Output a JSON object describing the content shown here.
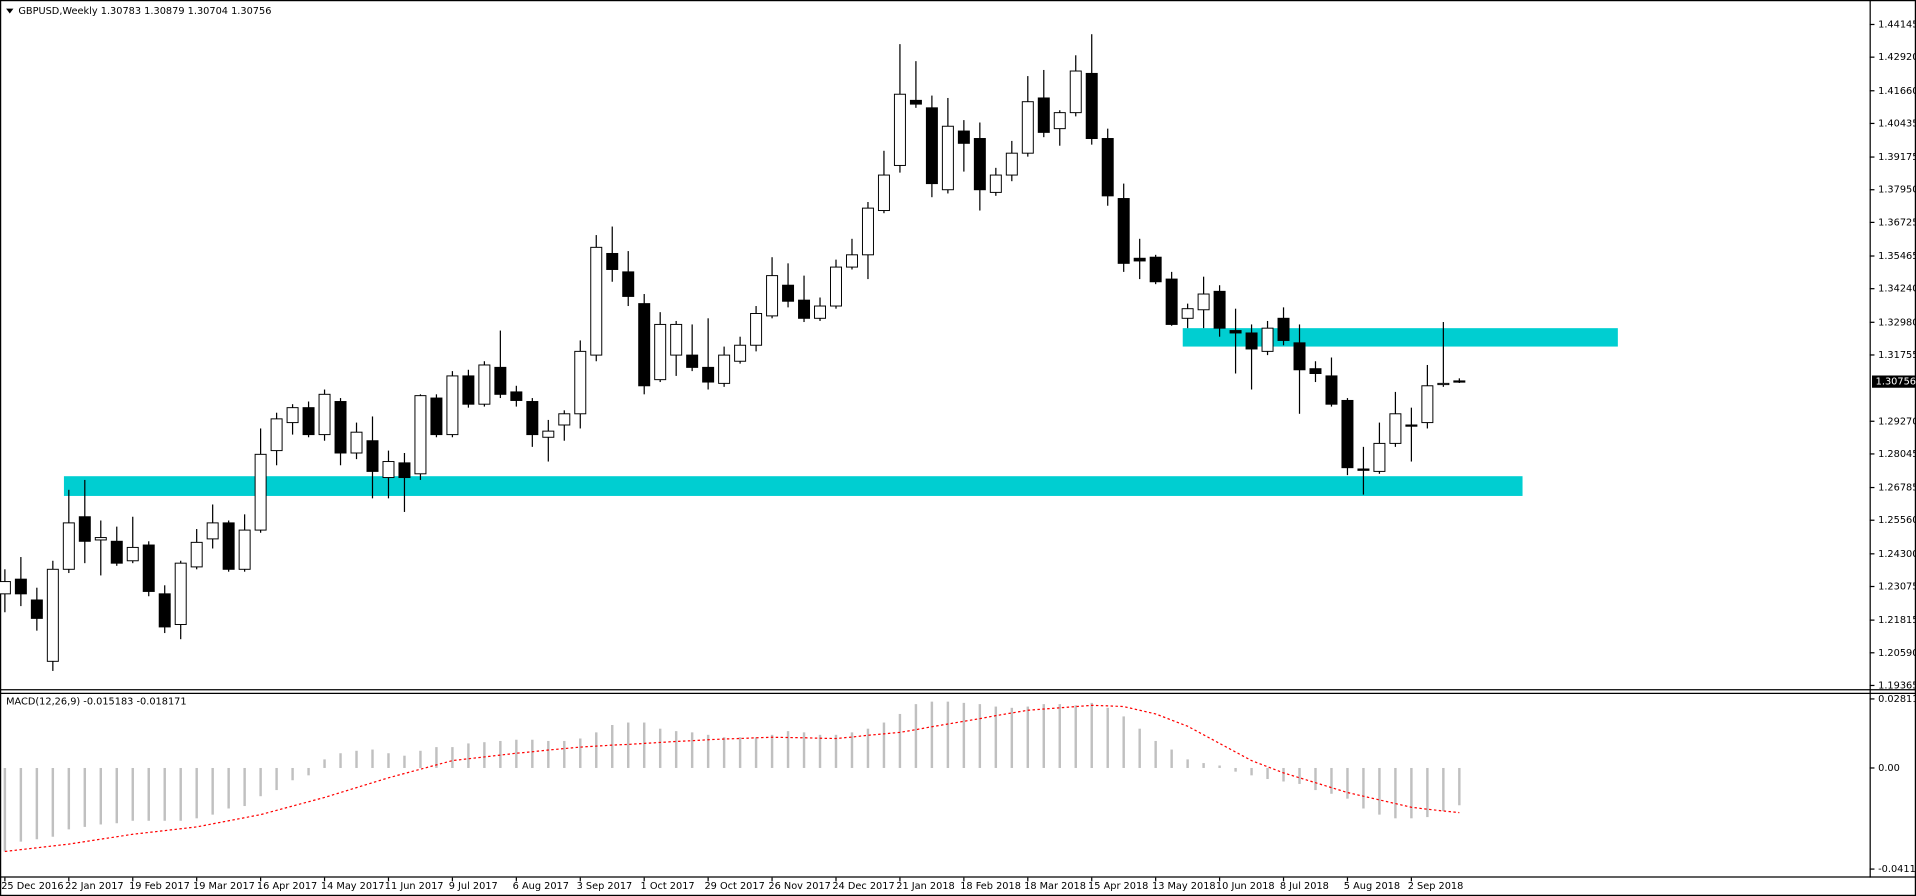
{
  "chart_data": [
    {
      "type": "candlestick",
      "title": "GBPUSD,Weekly 1.30783 1.30879 1.30704 1.30756",
      "categories": [
        "25 Dec 2016",
        null,
        null,
        null,
        "22 Jan 2017",
        null,
        null,
        null,
        "19 Feb 2017",
        null,
        null,
        null,
        "19 Mar 2017",
        null,
        null,
        null,
        "16 Apr 2017",
        null,
        null,
        null,
        "14 May 2017",
        null,
        null,
        null,
        "11 Jun 2017",
        null,
        null,
        null,
        "9 Jul 2017",
        null,
        null,
        null,
        "6 Aug 2017",
        null,
        null,
        null,
        "3 Sep 2017",
        null,
        null,
        null,
        "1 Oct 2017",
        null,
        null,
        null,
        "29 Oct 2017",
        null,
        null,
        null,
        "26 Nov 2017",
        null,
        null,
        null,
        "24 Dec 2017",
        null,
        null,
        null,
        "21 Jan 2018",
        null,
        null,
        null,
        "18 Feb 2018",
        null,
        null,
        null,
        "18 Mar 2018",
        null,
        null,
        null,
        "15 Apr 2018",
        null,
        null,
        null,
        "13 May 2018",
        null,
        null,
        null,
        "10 Jun 2018",
        null,
        null,
        null,
        "8 Jul 2018",
        null,
        null,
        null,
        "5 Aug 2018",
        null,
        null,
        null,
        "2 Sep 2018",
        null,
        null,
        null
      ],
      "open": [
        1.228,
        1.2335,
        1.2257,
        1.2027,
        1.2372,
        1.2569,
        1.2482,
        1.2477,
        1.2404,
        1.2463,
        1.228,
        1.2165,
        1.2381,
        1.2486,
        1.2546,
        1.2372,
        1.2519,
        1.2817,
        1.2922,
        1.2978,
        1.2877,
        1.3001,
        1.2808,
        1.2854,
        1.2716,
        1.2771,
        1.273,
        1.3014,
        1.2877,
        1.3097,
        1.2991,
        1.3129,
        1.3037,
        1.3001,
        1.2867,
        1.2913,
        1.2955,
        1.3175,
        1.3556,
        1.3487,
        1.3368,
        1.3083,
        1.3175,
        1.3175,
        1.3129,
        1.3069,
        1.3152,
        1.3212,
        1.3322,
        1.3437,
        1.3381,
        1.3313,
        1.3359,
        1.3505,
        1.3551,
        1.3717,
        1.3886,
        1.413,
        1.4102,
        1.3795,
        1.4015,
        1.3987,
        1.3785,
        1.385,
        1.3932,
        1.4139,
        1.4024,
        1.4084,
        1.4231,
        1.3987,
        1.3762,
        1.3538,
        1.3542,
        1.346,
        1.3313,
        1.3345,
        1.3414,
        1.3267,
        1.3258,
        1.3189,
        1.3313,
        1.3221,
        1.3124,
        1.3097,
        1.3005,
        1.2748,
        1.2739,
        1.2844,
        1.2913,
        1.2922,
        1.3065,
        1.30783
      ],
      "high": [
        1.2372,
        1.2418,
        1.2303,
        1.2404,
        1.267,
        1.2707,
        1.2555,
        1.2532,
        1.2569,
        1.2477,
        1.2312,
        1.2404,
        1.2523,
        1.2615,
        1.2555,
        1.2578,
        1.29,
        1.2959,
        1.2991,
        1.3001,
        1.3046,
        1.3014,
        1.2922,
        1.2945,
        1.2817,
        1.2808,
        1.3028,
        1.3028,
        1.3115,
        1.312,
        1.3152,
        1.3267,
        1.306,
        1.3014,
        1.2932,
        1.2968,
        1.323,
        1.3625,
        1.3657,
        1.3565,
        1.3404,
        1.3336,
        1.3303,
        1.329,
        1.3313,
        1.3207,
        1.3244,
        1.3359,
        1.3542,
        1.3519,
        1.3473,
        1.3391,
        1.3533,
        1.3611,
        1.3749,
        1.3941,
        1.4341,
        1.4277,
        1.4148,
        1.4139,
        1.4056,
        1.4047,
        1.3877,
        1.3978,
        1.4221,
        1.4244,
        1.4093,
        1.4299,
        1.4378,
        1.4024,
        1.3818,
        1.3611,
        1.3551,
        1.3487,
        1.3368,
        1.3469,
        1.3437,
        1.3349,
        1.329,
        1.3303,
        1.3354,
        1.329,
        1.3152,
        1.3166,
        1.3014,
        1.2831,
        1.2922,
        1.3037,
        1.2978,
        1.3138,
        1.3299,
        1.30879
      ],
      "low": [
        1.2211,
        1.2234,
        1.2142,
        1.1991,
        1.2358,
        1.2395,
        1.2349,
        1.2385,
        1.2395,
        1.2271,
        1.2133,
        1.211,
        1.2372,
        1.245,
        1.2363,
        1.2363,
        1.2509,
        1.2762,
        1.2877,
        1.2867,
        1.2854,
        1.2762,
        1.2785,
        1.2638,
        1.2638,
        1.2587,
        1.2707,
        1.2867,
        1.2867,
        1.2978,
        1.2982,
        1.3014,
        1.2982,
        1.2831,
        1.2776,
        1.2854,
        1.29,
        1.3152,
        1.345,
        1.3359,
        1.3028,
        1.3074,
        1.3097,
        1.3115,
        1.3046,
        1.3056,
        1.3143,
        1.3189,
        1.3313,
        1.3354,
        1.3299,
        1.3303,
        1.3349,
        1.3496,
        1.346,
        1.3707,
        1.3859,
        1.4102,
        1.3767,
        1.3781,
        1.3863,
        1.3717,
        1.3772,
        1.3827,
        1.3919,
        1.3992,
        1.396,
        1.407,
        1.3964,
        1.3735,
        1.3487,
        1.346,
        1.3441,
        1.3285,
        1.3276,
        1.3276,
        1.3244,
        1.3106,
        1.3046,
        1.3175,
        1.3212,
        1.2955,
        1.3074,
        1.2982,
        1.2725,
        1.2652,
        1.273,
        1.2831,
        1.2776,
        1.29,
        1.3056,
        1.30704
      ],
      "close": [
        1.2326,
        1.228,
        1.2188,
        1.2372,
        1.2546,
        1.2477,
        1.2491,
        1.2395,
        1.2454,
        1.2289,
        1.2156,
        1.2395,
        1.2473,
        1.2546,
        1.2372,
        1.2519,
        1.2803,
        1.2936,
        1.2978,
        1.2877,
        1.3028,
        1.2808,
        1.2886,
        1.2739,
        1.2776,
        1.2716,
        1.3023,
        1.2877,
        1.3097,
        1.2991,
        1.3138,
        1.3028,
        1.3005,
        1.2877,
        1.289,
        1.2955,
        1.3189,
        1.3579,
        1.3496,
        1.3395,
        1.306,
        1.329,
        1.329,
        1.3129,
        1.3074,
        1.3175,
        1.3212,
        1.3331,
        1.3473,
        1.3377,
        1.3313,
        1.3359,
        1.3505,
        1.3551,
        1.3726,
        1.385,
        1.4153,
        1.4116,
        1.3818,
        1.4033,
        1.3969,
        1.3795,
        1.385,
        1.3932,
        1.4125,
        1.401,
        1.4084,
        1.424,
        1.3987,
        1.3772,
        1.3519,
        1.3528,
        1.345,
        1.329,
        1.3349,
        1.3404,
        1.3276,
        1.3258,
        1.3198,
        1.3276,
        1.323,
        1.312,
        1.3106,
        1.2991,
        1.2753,
        1.2743,
        1.2844,
        1.2955,
        1.2909,
        1.306,
        1.3069,
        1.30756
      ],
      "up_color": "#ffffff",
      "down_color": "#000000",
      "last_price": 1.30756,
      "zones": [
        {
          "from": 1.2647,
          "to": 1.2721,
          "color": "#00ced1"
        },
        {
          "from": 1.3207,
          "to": 1.3276,
          "color": "#00ced1"
        }
      ],
      "ylim": [
        1.19365,
        1.44145
      ],
      "yticks": [
        1.44145,
        {
          "value": 1.4292,
          "label": "1.42920"
        },
        {
          "value": 1.4166,
          "label": "1.41660"
        },
        1.40435,
        1.39175,
        {
          "value": 1.3795,
          "label": "1.37950"
        },
        1.36725,
        1.35465,
        {
          "value": 1.3424,
          "label": "1.34240"
        },
        {
          "value": 1.3298,
          "label": "1.32980"
        },
        1.31755,
        {
          "value": 1.2927,
          "label": "1.29270"
        },
        1.28045,
        1.26785,
        {
          "value": 1.2556,
          "label": "1.25560"
        },
        {
          "value": 1.243,
          "label": "1.24300"
        },
        1.23075,
        1.21815,
        {
          "value": 1.2059,
          "label": "1.20590"
        },
        1.19365
      ]
    },
    {
      "type": "macd",
      "title": "MACD(12,26,9) -0.015183 -0.018171",
      "histogram": [
        -0.034,
        -0.03,
        -0.029,
        -0.028,
        -0.025,
        -0.024,
        -0.023,
        -0.0225,
        -0.0215,
        -0.0215,
        -0.0215,
        -0.0215,
        -0.0205,
        -0.019,
        -0.0165,
        -0.0155,
        -0.0115,
        -0.009,
        -0.005,
        -0.003,
        0.0035,
        0.006,
        0.007,
        0.0075,
        0.006,
        0.005,
        0.007,
        0.0085,
        0.0085,
        0.01,
        0.0105,
        0.011,
        0.0115,
        0.0115,
        0.011,
        0.011,
        0.012,
        0.0145,
        0.0175,
        0.0185,
        0.0185,
        0.016,
        0.015,
        0.0145,
        0.0135,
        0.0125,
        0.0125,
        0.0125,
        0.0135,
        0.015,
        0.0145,
        0.0135,
        0.0135,
        0.0145,
        0.016,
        0.0185,
        0.022,
        0.026,
        0.027,
        0.027,
        0.0265,
        0.026,
        0.025,
        0.0245,
        0.025,
        0.026,
        0.026,
        0.0255,
        0.0265,
        0.0245,
        0.021,
        0.016,
        0.011,
        0.0075,
        0.0035,
        0.002,
        0.001,
        -0.0015,
        -0.003,
        -0.0045,
        -0.0055,
        -0.0065,
        -0.009,
        -0.0105,
        -0.0125,
        -0.0165,
        -0.019,
        -0.0205,
        -0.0205,
        -0.02,
        -0.0175,
        -0.015183
      ],
      "signal": [
        -0.034,
        -0.03325,
        -0.0325,
        -0.03175,
        -0.031,
        -0.03,
        -0.029,
        -0.028,
        -0.027,
        -0.02625,
        -0.0255,
        -0.02475,
        -0.024,
        -0.02275,
        -0.0215,
        -0.02025,
        -0.019,
        -0.01725,
        -0.0155,
        -0.01375,
        -0.012,
        -0.01,
        -0.008,
        -0.006,
        -0.004,
        -0.00225,
        -0.0005,
        0.00125,
        0.003,
        0.00375,
        0.0045,
        0.00525,
        0.006,
        0.0066,
        0.0073,
        0.0079,
        0.0085,
        0.0089,
        0.0093,
        0.0096,
        0.01,
        0.0104,
        0.0108,
        0.0111,
        0.0115,
        0.0118,
        0.012,
        0.0123,
        0.0125,
        0.0124,
        0.0123,
        0.0121,
        0.012,
        0.0126,
        0.0133,
        0.0139,
        0.0145,
        0.0156,
        0.0168,
        0.0179,
        0.019,
        0.0201,
        0.0213,
        0.0224,
        0.0235,
        0.024,
        0.0245,
        0.025,
        0.0255,
        0.0253,
        0.025,
        0.0235,
        0.022,
        0.0195,
        0.017,
        0.0135,
        0.01,
        0.0065,
        0.003,
        0.0005,
        -0.002,
        -0.004,
        -0.006,
        -0.008,
        -0.01,
        -0.0115,
        -0.013,
        -0.0145,
        -0.016,
        -0.0168,
        -0.0175,
        -0.018171
      ],
      "histogram_color": "#c0c0c0",
      "signal_color": "#ff0000",
      "ylim": [
        -0.041166,
        0.028114
      ],
      "yticks": [
        0.028114,
        {
          "value": 0,
          "label": "0.00"
        },
        -0.041166
      ]
    }
  ]
}
